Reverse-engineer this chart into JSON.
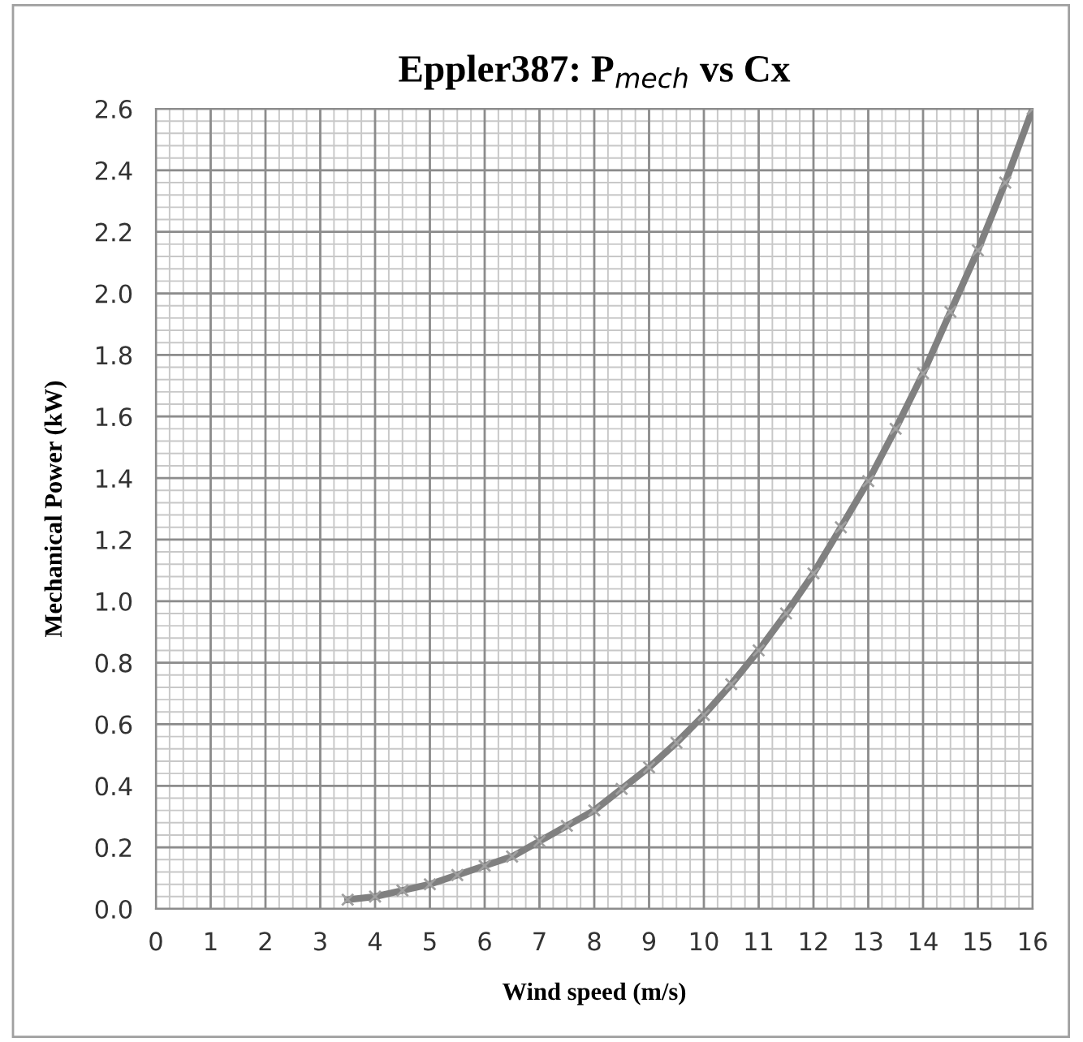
{
  "chart_data": {
    "type": "line",
    "title": "Eppler387: P$_{mech}$ vs Cx",
    "xlabel": "Wind speed (m/s)",
    "ylabel": "Mechanical Power (kW)",
    "x": [
      3.5,
      4,
      4.5,
      5,
      5.5,
      6,
      6.5,
      7,
      7.5,
      8,
      8.5,
      9,
      9.5,
      10,
      10.5,
      11,
      11.5,
      12,
      12.5,
      13,
      13.5,
      14,
      14.5,
      15,
      15.5,
      16
    ],
    "series": [
      {
        "color": "#808080",
        "values": [
          0.03,
          0.04,
          0.06,
          0.08,
          0.11,
          0.14,
          0.17,
          0.22,
          0.27,
          0.32,
          0.39,
          0.46,
          0.54,
          0.63,
          0.73,
          0.84,
          0.96,
          1.09,
          1.24,
          1.39,
          1.56,
          1.74,
          1.94,
          2.14,
          2.36,
          2.6
        ]
      }
    ],
    "xlim": [
      0,
      16
    ],
    "xticks": [
      0,
      1,
      2,
      3,
      4,
      5,
      6,
      7,
      8,
      9,
      10,
      11,
      12,
      13,
      14,
      15,
      16
    ],
    "ylim": [
      0,
      2.6
    ],
    "yticks": [
      {
        "value": 0,
        "label": "0.0"
      },
      0.2,
      0.4,
      0.6,
      0.8,
      {
        "value": 1,
        "label": "1.0"
      },
      1.2,
      1.4,
      1.6,
      1.8,
      {
        "value": 2,
        "label": "2.0"
      },
      2.2,
      2.4,
      2.6
    ],
    "grid": true,
    "marker": "cross",
    "line_style": "solid"
  }
}
